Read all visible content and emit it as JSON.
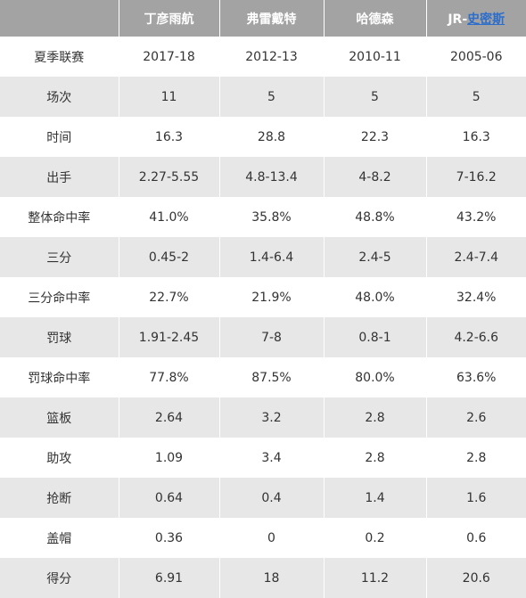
{
  "table": {
    "headers": [
      "",
      "丁彦雨航",
      "弗雷戴特",
      "哈德森"
    ],
    "last_header": {
      "prefix": "JR-",
      "link": "史密斯"
    },
    "rows": [
      [
        "夏季联赛",
        "2017-18",
        "2012-13",
        "2010-11",
        "2005-06"
      ],
      [
        "场次",
        "11",
        "5",
        "5",
        "5"
      ],
      [
        "时间",
        "16.3",
        "28.8",
        "22.3",
        "16.3"
      ],
      [
        "出手",
        "2.27-5.55",
        "4.8-13.4",
        "4-8.2",
        "7-16.2"
      ],
      [
        "整体命中率",
        "41.0%",
        "35.8%",
        "48.8%",
        "43.2%"
      ],
      [
        "三分",
        "0.45-2",
        "1.4-6.4",
        "2.4-5",
        "2.4-7.4"
      ],
      [
        "三分命中率",
        "22.7%",
        "21.9%",
        "48.0%",
        "32.4%"
      ],
      [
        "罚球",
        "1.91-2.45",
        "7-8",
        "0.8-1",
        "4.2-6.6"
      ],
      [
        "罚球命中率",
        "77.8%",
        "87.5%",
        "80.0%",
        "63.6%"
      ],
      [
        "篮板",
        "2.64",
        "3.2",
        "2.8",
        "2.6"
      ],
      [
        "助攻",
        "1.09",
        "3.4",
        "2.8",
        "2.8"
      ],
      [
        "抢断",
        "0.64",
        "0.4",
        "1.4",
        "1.6"
      ],
      [
        "盖帽",
        "0.36",
        "0",
        "0.2",
        "0.6"
      ],
      [
        "得分",
        "6.91",
        "18",
        "11.2",
        "20.6"
      ]
    ]
  },
  "colors": {
    "header_bg": "#a3a3a3",
    "header_text": "#ffffff",
    "row_alt_bg": "#e7e7e7",
    "link": "#2d6eca"
  }
}
